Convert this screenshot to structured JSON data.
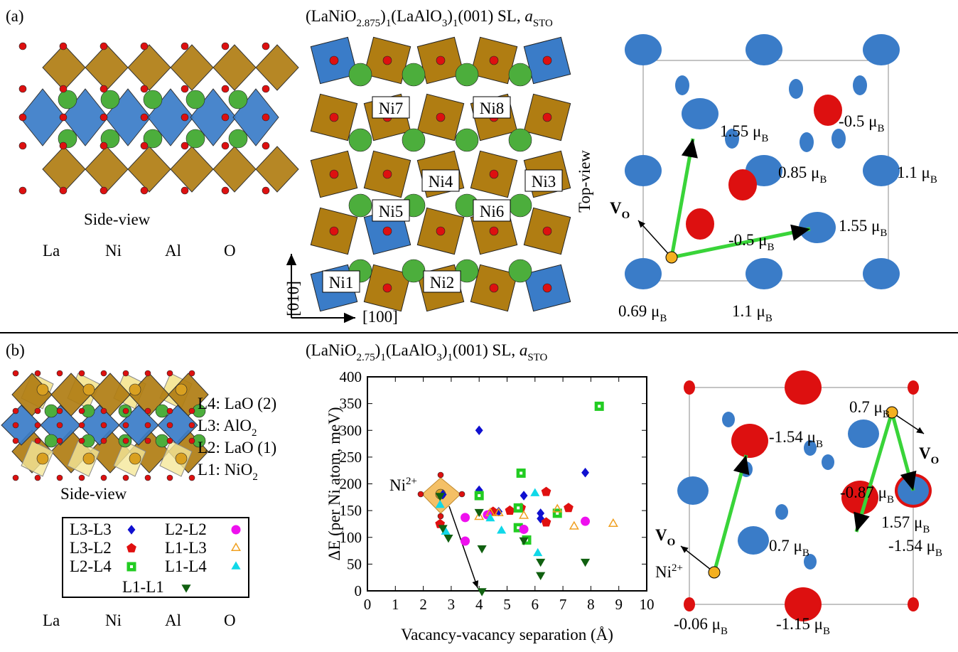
{
  "panel_a": {
    "label": "(a)",
    "title": [
      "(LaNiO",
      {
        "sub": "2.875"
      },
      ")",
      {
        "sub": "1"
      },
      "(LaAlO",
      {
        "sub": "3"
      },
      ")",
      {
        "sub": "1"
      },
      "(001) SL, ",
      {
        "i": "a"
      },
      {
        "sub": "STO"
      }
    ],
    "side_view": "Side-view",
    "elements": [
      {
        "name": "La",
        "color": "#2e9c2e"
      },
      {
        "name": "Ni",
        "color": "#e8771e"
      },
      {
        "name": "Al",
        "color": "#1c3fd0"
      },
      {
        "name": "O",
        "color": "#e01010"
      }
    ],
    "ni_labels": [
      "Ni7",
      "Ni8",
      "Ni4",
      "Ni3",
      "Ni5",
      "Ni6",
      "Ni1",
      "Ni2"
    ],
    "axis_labels": [
      "[010]",
      "[100]"
    ],
    "top_view": "Top-view",
    "vacancy": [
      "V",
      {
        "sub": "O"
      }
    ],
    "moments": [
      [
        "1.55 μ",
        {
          "sub": "B"
        }
      ],
      [
        "-0.5 μ",
        {
          "sub": "B"
        }
      ],
      [
        "0.85 μ",
        {
          "sub": "B"
        }
      ],
      [
        "1.1 μ",
        {
          "sub": "B"
        }
      ],
      [
        "-0.5 μ",
        {
          "sub": "B"
        }
      ],
      [
        "1.55 μ",
        {
          "sub": "B"
        }
      ],
      [
        "0.69 μ",
        {
          "sub": "B"
        }
      ],
      [
        "1.1 μ",
        {
          "sub": "B"
        }
      ]
    ]
  },
  "panel_b": {
    "label": "(b)",
    "title": [
      "(LaNiO",
      {
        "sub": "2.75"
      },
      ")",
      {
        "sub": "1"
      },
      "(LaAlO",
      {
        "sub": "3"
      },
      ")",
      {
        "sub": "1"
      },
      "(001) SL, ",
      {
        "i": "a"
      },
      {
        "sub": "STO"
      }
    ],
    "layers": [
      [
        "L4: LaO (2)"
      ],
      [
        "L3: AlO",
        {
          "sub": "2"
        }
      ],
      [
        "L2: LaO (1)"
      ],
      [
        "L1: NiO",
        {
          "sub": "2"
        }
      ]
    ],
    "side_view": "Side-view",
    "elements": [
      {
        "name": "La",
        "color": "#2e9c2e"
      },
      {
        "name": "Ni",
        "color": "#e8771e"
      },
      {
        "name": "Al",
        "color": "#1c3fd0"
      },
      {
        "name": "O",
        "color": "#e01010"
      }
    ],
    "vacancies": [
      [
        "V",
        {
          "sub": "O"
        }
      ],
      [
        "V",
        {
          "sub": "O"
        }
      ]
    ],
    "ni_charge": [
      "Ni",
      {
        "sup": "2+"
      }
    ],
    "moments": [
      [
        "0.7 μ",
        {
          "sub": "B"
        }
      ],
      [
        "-1.54 μ",
        {
          "sub": "B"
        }
      ],
      [
        "-0.87 μ",
        {
          "sub": "B"
        }
      ],
      [
        "1.57 μ",
        {
          "sub": "B"
        }
      ],
      [
        "0.7 μ",
        {
          "sub": "B"
        }
      ],
      [
        "-1.54 μ",
        {
          "sub": "B"
        }
      ],
      [
        "-0.06 μ",
        {
          "sub": "B"
        }
      ],
      [
        "-1.15 μ",
        {
          "sub": "B"
        }
      ]
    ]
  },
  "chart_data": {
    "type": "scatter",
    "xlabel": "Vacancy-vacancy separation (Å)",
    "ylabel": "ΔE (per Ni atom, meV)",
    "xlim": [
      0,
      10
    ],
    "ylim": [
      0,
      400
    ],
    "xticks": [
      0,
      1,
      2,
      3,
      4,
      5,
      6,
      7,
      8,
      9,
      10
    ],
    "yticks": [
      0,
      50,
      100,
      150,
      200,
      250,
      300,
      350,
      400
    ],
    "zero_line": true,
    "annotation": [
      "Ni",
      {
        "sup": "2+"
      }
    ],
    "series": [
      {
        "name": "L3-L3",
        "color": "#1010d0",
        "marker": "diamond",
        "x": [
          2.7,
          4.0,
          4.0,
          4.7,
          5.6,
          6.2,
          6.2,
          7.8
        ],
        "values": [
          180,
          300,
          188,
          148,
          178,
          145,
          135,
          221
        ]
      },
      {
        "name": "L3-L2",
        "color": "#e01010",
        "marker": "pentagon",
        "x": [
          2.6,
          4.5,
          5.1,
          5.5,
          6.4,
          6.4,
          7.2
        ],
        "values": [
          125,
          148,
          150,
          155,
          185,
          128,
          155
        ]
      },
      {
        "name": "L2-L4",
        "color": "#22cc22",
        "marker": "square-dot",
        "x": [
          4.0,
          5.5,
          5.4,
          5.4,
          5.7,
          6.8,
          8.3
        ],
        "values": [
          178,
          220,
          155,
          118,
          95,
          145,
          345
        ]
      },
      {
        "name": "L2-L2",
        "color": "#ee10ee",
        "marker": "circle",
        "x": [
          3.5,
          3.5,
          4.3,
          5.6,
          7.8
        ],
        "values": [
          93,
          137,
          142,
          115,
          130
        ]
      },
      {
        "name": "L1-L3",
        "color": "#f0a020",
        "marker": "triangle-open",
        "x": [
          4.0,
          4.4,
          4.7,
          5.6,
          6.8,
          7.4,
          8.8
        ],
        "values": [
          138,
          145,
          145,
          140,
          152,
          120,
          125
        ]
      },
      {
        "name": "L1-L4",
        "color": "#10d8e8",
        "marker": "triangle",
        "x": [
          2.6,
          2.8,
          4.4,
          4.8,
          6.0,
          6.1
        ],
        "values": [
          160,
          110,
          135,
          112,
          182,
          70
        ]
      },
      {
        "name": "L1-L1",
        "color": "#106010",
        "marker": "triangle-down",
        "x": [
          2.6,
          2.7,
          2.9,
          4.0,
          4.1,
          5.6,
          6.2,
          6.2,
          7.8,
          4.1
        ],
        "values": [
          178,
          118,
          100,
          148,
          80,
          95,
          55,
          30,
          55,
          0
        ]
      }
    ]
  }
}
